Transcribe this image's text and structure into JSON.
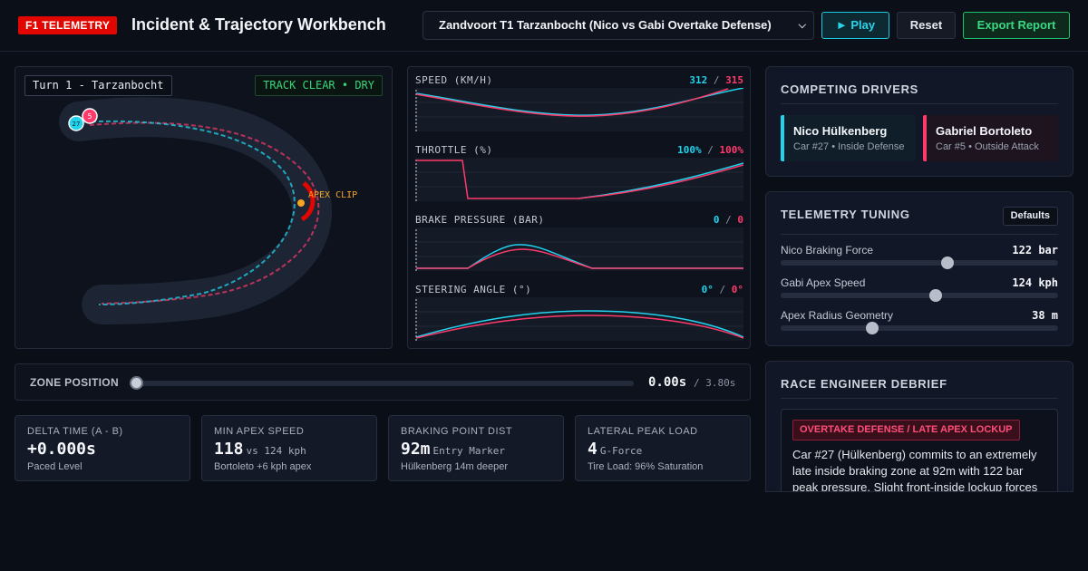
{
  "header": {
    "brand": "F1 TELEMETRY",
    "title": "Incident & Trajectory Workbench",
    "scenario": "Zandvoort T1 Tarzanbocht (Nico vs Gabi Overtake Defense)",
    "play_label": "► Play",
    "reset_label": "Reset",
    "export_label": "Export Report"
  },
  "track": {
    "turn_label": "Turn 1 - Tarzanbocht",
    "status": "TRACK CLEAR • DRY",
    "apex_label": "APEX CLIP",
    "car_nico_number": "27",
    "car_gabi_number": "5"
  },
  "telemetry": {
    "charts": [
      {
        "label": "SPEED (KM/H)",
        "nico": "312",
        "sep": "/",
        "gabi": "315"
      },
      {
        "label": "THROTTLE (%)",
        "nico": "100%",
        "sep": "/",
        "gabi": "100%"
      },
      {
        "label": "BRAKE PRESSURE (BAR)",
        "nico": "0",
        "sep": "/",
        "gabi": "0"
      },
      {
        "label": "STEERING ANGLE (°)",
        "nico": "0°",
        "sep": "/",
        "gabi": "0°"
      }
    ]
  },
  "zone": {
    "label": "ZONE POSITION",
    "time": "0.00s",
    "total": "/ 3.80s",
    "position_fraction": 0
  },
  "stats": [
    {
      "title": "DELTA TIME (A - B)",
      "value": "+0.000s",
      "unit": "",
      "sub": "Paced Level"
    },
    {
      "title": "MIN APEX SPEED",
      "value": "118",
      "unit": "vs 124 kph",
      "sub": "Bortoleto +6 kph apex"
    },
    {
      "title": "BRAKING POINT DIST",
      "value": "92m",
      "unit": "Entry Marker",
      "sub": "Hülkenberg 14m deeper"
    },
    {
      "title": "LATERAL PEAK LOAD",
      "value": "4",
      "unit": "G-Force",
      "sub": "Tire Load: 96% Saturation"
    }
  ],
  "drivers": {
    "title": "COMPETING DRIVERS",
    "nico": {
      "name": "Nico Hülkenberg",
      "meta": "Car #27 • Inside Defense"
    },
    "gabi": {
      "name": "Gabriel Bortoleto",
      "meta": "Car #5 • Outside Attack"
    }
  },
  "tuning": {
    "title": "TELEMETRY TUNING",
    "defaults_label": "Defaults",
    "rows": [
      {
        "label": "Nico Braking Force",
        "value": "122 bar",
        "fraction": 0.6
      },
      {
        "label": "Gabi Apex Speed",
        "value": "124 kph",
        "fraction": 0.56
      },
      {
        "label": "Apex Radius Geometry",
        "value": "38 m",
        "fraction": 0.33
      }
    ]
  },
  "debrief": {
    "title": "RACE ENGINEER DEBRIEF",
    "tag": "OVERTAKE DEFENSE / LATE APEX LOCKUP",
    "text": "Car #27 (Hülkenberg) commits to an extremely late inside braking zone at 92m with 122 bar peak pressure. Slight front-inside lockup forces"
  },
  "colors": {
    "nico": "#22d3ee",
    "gabi": "#ff3a6b",
    "brand": "#e10600",
    "apex": "#f5a524"
  }
}
